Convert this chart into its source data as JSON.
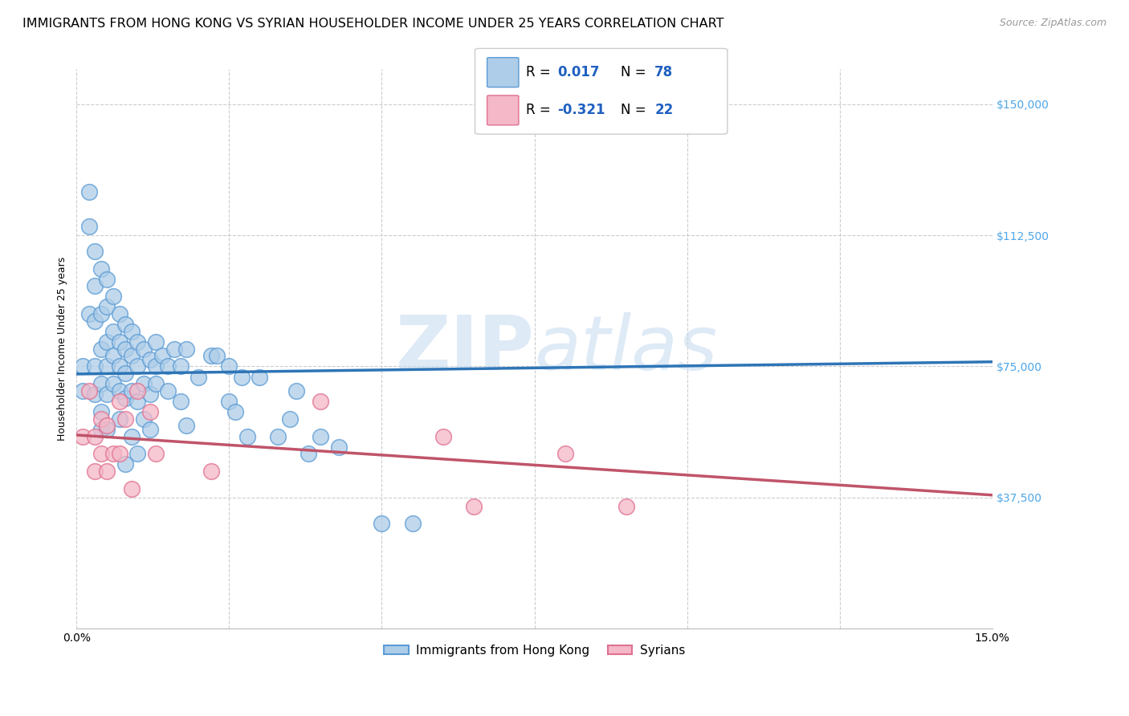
{
  "title": "IMMIGRANTS FROM HONG KONG VS SYRIAN HOUSEHOLDER INCOME UNDER 25 YEARS CORRELATION CHART",
  "source": "Source: ZipAtlas.com",
  "ylabel": "Householder Income Under 25 years",
  "yticks": [
    0,
    37500,
    75000,
    112500,
    150000
  ],
  "ytick_labels": [
    "",
    "$37,500",
    "$75,000",
    "$112,500",
    "$150,000"
  ],
  "xlim": [
    0.0,
    0.15
  ],
  "ylim": [
    0,
    160000
  ],
  "hk_color": "#aecde8",
  "hk_edge_color": "#5b9bd5",
  "hk_line_color": "#2e75b6",
  "syrian_color": "#f4b8c8",
  "syrian_edge_color": "#e07090",
  "syrian_line_color": "#c0546a",
  "legend_hk_label": "Immigrants from Hong Kong",
  "legend_syrian_label": "Syrians",
  "hk_R": 0.017,
  "hk_N": 78,
  "syrian_R": -0.321,
  "syrian_N": 22,
  "hk_scatter_x": [
    0.001,
    0.001,
    0.002,
    0.002,
    0.002,
    0.003,
    0.003,
    0.003,
    0.003,
    0.003,
    0.004,
    0.004,
    0.004,
    0.004,
    0.004,
    0.004,
    0.005,
    0.005,
    0.005,
    0.005,
    0.005,
    0.005,
    0.006,
    0.006,
    0.006,
    0.006,
    0.007,
    0.007,
    0.007,
    0.007,
    0.007,
    0.008,
    0.008,
    0.008,
    0.008,
    0.008,
    0.009,
    0.009,
    0.009,
    0.009,
    0.01,
    0.01,
    0.01,
    0.01,
    0.011,
    0.011,
    0.011,
    0.012,
    0.012,
    0.012,
    0.013,
    0.013,
    0.013,
    0.014,
    0.015,
    0.015,
    0.016,
    0.017,
    0.017,
    0.018,
    0.018,
    0.02,
    0.022,
    0.023,
    0.025,
    0.025,
    0.026,
    0.027,
    0.028,
    0.03,
    0.033,
    0.035,
    0.036,
    0.038,
    0.04,
    0.043,
    0.05,
    0.055
  ],
  "hk_scatter_y": [
    68000,
    75000,
    115000,
    125000,
    90000,
    108000,
    98000,
    88000,
    75000,
    67000,
    103000,
    90000,
    80000,
    70000,
    62000,
    57000,
    100000,
    92000,
    82000,
    75000,
    67000,
    57000,
    95000,
    85000,
    78000,
    70000,
    90000,
    82000,
    75000,
    68000,
    60000,
    87000,
    80000,
    73000,
    66000,
    47000,
    85000,
    78000,
    68000,
    55000,
    82000,
    75000,
    65000,
    50000,
    80000,
    70000,
    60000,
    77000,
    67000,
    57000,
    82000,
    75000,
    70000,
    78000,
    75000,
    68000,
    80000,
    75000,
    65000,
    80000,
    58000,
    72000,
    78000,
    78000,
    75000,
    65000,
    62000,
    72000,
    55000,
    72000,
    55000,
    60000,
    68000,
    50000,
    55000,
    52000,
    30000,
    30000
  ],
  "syrian_scatter_x": [
    0.001,
    0.002,
    0.003,
    0.003,
    0.004,
    0.004,
    0.005,
    0.005,
    0.006,
    0.007,
    0.007,
    0.008,
    0.009,
    0.01,
    0.012,
    0.013,
    0.022,
    0.04,
    0.06,
    0.065,
    0.08,
    0.09
  ],
  "syrian_scatter_y": [
    55000,
    68000,
    55000,
    45000,
    60000,
    50000,
    58000,
    45000,
    50000,
    65000,
    50000,
    60000,
    40000,
    68000,
    62000,
    50000,
    45000,
    65000,
    55000,
    35000,
    50000,
    35000
  ],
  "background_color": "#ffffff",
  "grid_color": "#cccccc",
  "watermark_zip": "ZIP",
  "watermark_atlas": "atlas",
  "title_fontsize": 11.5,
  "axis_label_fontsize": 9,
  "tick_fontsize": 10,
  "corr_box_text_color": "#2060c0",
  "ytick_color": "#4da6e8"
}
